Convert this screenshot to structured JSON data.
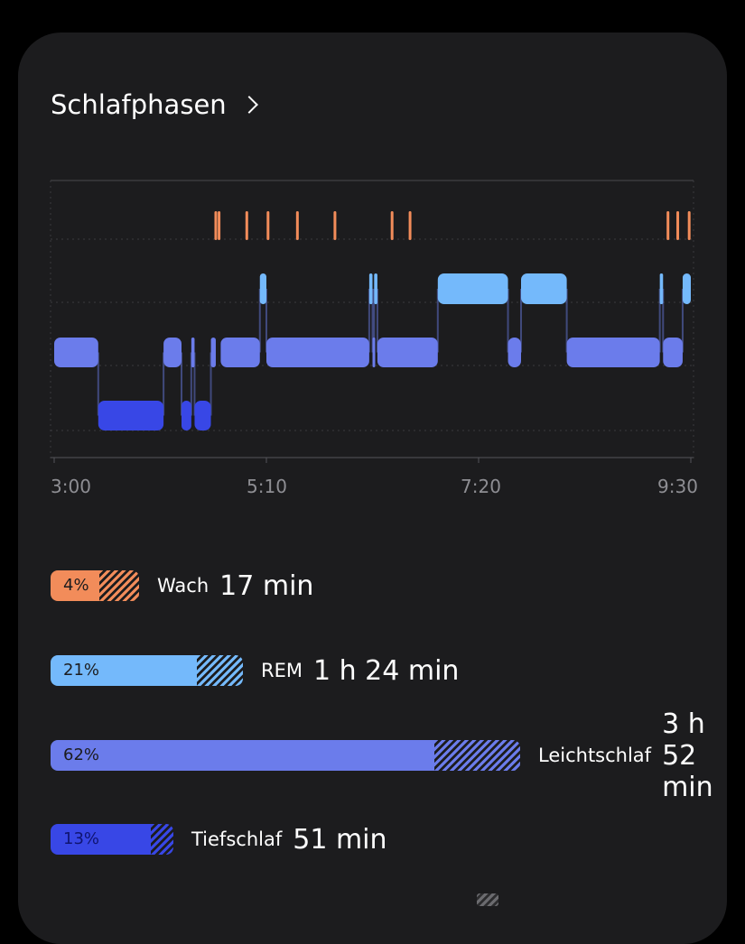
{
  "header": {
    "title": "Schlafphasen"
  },
  "colors": {
    "wach": "#f28c5a",
    "rem": "#74b9fb",
    "leicht": "#6b7ceb",
    "tief": "#3847e6",
    "hatch_light": "#ffffff"
  },
  "chart_data": {
    "type": "step",
    "x_ticks": [
      "3:00",
      "5:10",
      "7:20",
      "9:30"
    ],
    "stages": [
      "Wach",
      "REM",
      "Leichtschlaf",
      "Tiefschlaf"
    ],
    "segments": [
      {
        "stage": "leicht",
        "start": "3:00",
        "end": "3:27"
      },
      {
        "stage": "tief",
        "start": "3:27",
        "end": "4:07"
      },
      {
        "stage": "leicht",
        "start": "4:07",
        "end": "4:18"
      },
      {
        "stage": "tief",
        "start": "4:18",
        "end": "4:24"
      },
      {
        "stage": "leicht",
        "start": "4:24",
        "end": "4:26"
      },
      {
        "stage": "tief",
        "start": "4:26",
        "end": "4:36"
      },
      {
        "stage": "leicht",
        "start": "4:36",
        "end": "4:39"
      },
      {
        "stage": "wach",
        "start": "4:39",
        "end": "4:42"
      },
      {
        "stage": "leicht",
        "start": "4:42",
        "end": "5:06"
      },
      {
        "stage": "rem",
        "start": "5:06",
        "end": "5:10"
      },
      {
        "stage": "leicht",
        "start": "5:10",
        "end": "6:13"
      },
      {
        "stage": "rem",
        "start": "6:13",
        "end": "6:15"
      },
      {
        "stage": "leicht",
        "start": "6:15",
        "end": "6:16"
      },
      {
        "stage": "rem",
        "start": "6:16",
        "end": "6:18"
      },
      {
        "stage": "leicht",
        "start": "6:18",
        "end": "6:55"
      },
      {
        "stage": "rem",
        "start": "6:55",
        "end": "7:38"
      },
      {
        "stage": "leicht",
        "start": "7:38",
        "end": "7:46"
      },
      {
        "stage": "rem",
        "start": "7:46",
        "end": "8:14"
      },
      {
        "stage": "leicht",
        "start": "8:14",
        "end": "9:11"
      },
      {
        "stage": "rem",
        "start": "9:11",
        "end": "9:13"
      },
      {
        "stage": "leicht",
        "start": "9:13",
        "end": "9:25"
      },
      {
        "stage": "rem",
        "start": "9:25",
        "end": "9:30"
      }
    ],
    "wake_marks": [
      "4:39",
      "4:41",
      "4:58",
      "5:11",
      "5:29",
      "5:52",
      "6:27",
      "6:38",
      "9:16",
      "9:22",
      "9:29"
    ]
  },
  "stats": [
    {
      "key": "wach",
      "pct": "4%",
      "label": "Wach",
      "value": "17 min",
      "fraction": 0.04,
      "hatched_fraction": 0.05
    },
    {
      "key": "rem",
      "pct": "21%",
      "label": "REM",
      "value": "1 h 24 min",
      "fraction": 0.21,
      "hatched_fraction": 0.06
    },
    {
      "key": "leicht",
      "pct": "62%",
      "label": "Leichtschlaf",
      "value": "3 h 52 min",
      "fraction": 0.62,
      "hatched_fraction": 0.13
    },
    {
      "key": "tief",
      "pct": "13%",
      "label": "Tiefschlaf",
      "value": "51 min",
      "fraction": 0.13,
      "hatched_fraction": 0.02
    }
  ]
}
